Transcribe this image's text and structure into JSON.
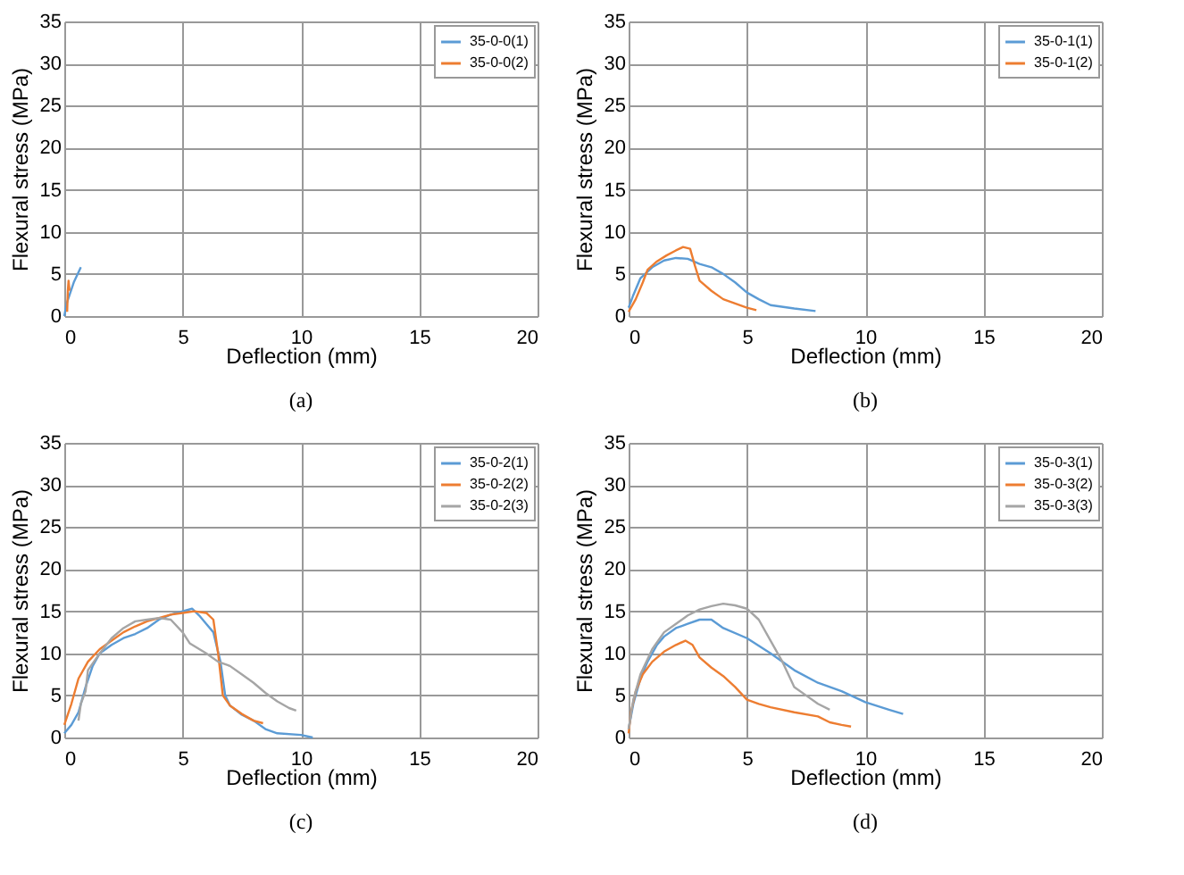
{
  "chart_data": [
    {
      "type": "line",
      "xlabel": "Deflection (mm)",
      "ylabel": "Flexural stress (MPa)",
      "xlim": [
        0,
        20
      ],
      "xticks": [
        0,
        5,
        10,
        15,
        20
      ],
      "ylim": [
        0,
        35
      ],
      "yticks": [
        0,
        5,
        10,
        15,
        20,
        25,
        30,
        35
      ],
      "grid": true,
      "legend": "top right",
      "annotations": [
        "(a)"
      ],
      "series": [
        {
          "name": "35-0-0(1)",
          "color": "#5b9bd5",
          "x": [
            0,
            0.1,
            0.4,
            0.7
          ],
          "values": [
            0,
            1.5,
            4,
            5.8
          ]
        },
        {
          "name": "35-0-0(2)",
          "color": "#ed7d31",
          "x": [
            0.12,
            0.15,
            0.18,
            0.22
          ],
          "values": [
            0.5,
            3,
            4.2,
            3
          ]
        }
      ]
    },
    {
      "type": "line",
      "xlabel": "Deflection (mm)",
      "ylabel": "Flexural stress (MPa)",
      "xlim": [
        0,
        20
      ],
      "xticks": [
        0,
        5,
        10,
        15,
        20
      ],
      "ylim": [
        0,
        35
      ],
      "yticks": [
        0,
        5,
        10,
        15,
        20,
        25,
        30,
        35
      ],
      "grid": true,
      "legend": "top right",
      "annotations": [
        "(b)"
      ],
      "series": [
        {
          "name": "35-0-1(1)",
          "color": "#5b9bd5",
          "x": [
            0,
            0.2,
            0.5,
            1,
            1.5,
            2,
            2.5,
            3,
            3.5,
            4,
            4.5,
            5,
            5.5,
            6,
            7,
            7.9
          ],
          "values": [
            1,
            2.5,
            4.5,
            5.8,
            6.6,
            6.9,
            6.8,
            6.2,
            5.8,
            5,
            4,
            2.8,
            2,
            1.3,
            0.9,
            0.6
          ]
        },
        {
          "name": "35-0-1(2)",
          "color": "#ed7d31",
          "x": [
            0,
            0.3,
            0.6,
            0.8,
            1.2,
            1.6,
            2,
            2.3,
            2.6,
            2.8,
            3,
            3.5,
            4,
            4.5,
            5,
            5.4
          ],
          "values": [
            0.5,
            2,
            4,
            5.5,
            6.5,
            7.2,
            7.8,
            8.2,
            8,
            6,
            4.2,
            3,
            2,
            1.5,
            1,
            0.7
          ]
        }
      ]
    },
    {
      "type": "line",
      "xlabel": "Deflection (mm)",
      "ylabel": "Flexural stress (MPa)",
      "xlim": [
        0,
        20
      ],
      "xticks": [
        0,
        5,
        10,
        15,
        20
      ],
      "ylim": [
        0,
        35
      ],
      "yticks": [
        0,
        5,
        10,
        15,
        20,
        25,
        30,
        35
      ],
      "grid": true,
      "legend": "top right",
      "annotations": [
        "(c)"
      ],
      "series": [
        {
          "name": "35-0-2(1)",
          "color": "#5b9bd5",
          "x": [
            0,
            0.3,
            0.6,
            0.9,
            1.2,
            1.5,
            2,
            2.5,
            3,
            3.5,
            4,
            4.5,
            5,
            5.4,
            5.7,
            6,
            6.3,
            6.6,
            6.8,
            7,
            7.5,
            8,
            8.5,
            9,
            10,
            10.5
          ],
          "values": [
            0.5,
            1.5,
            3,
            6,
            8.5,
            10,
            11,
            11.8,
            12.3,
            13,
            14,
            14.6,
            15,
            15.3,
            14.5,
            13.5,
            12.5,
            9,
            5,
            3.8,
            2.7,
            2,
            1,
            0.5,
            0.3,
            0
          ]
        },
        {
          "name": "35-0-2(2)",
          "color": "#ed7d31",
          "x": [
            0,
            0.3,
            0.6,
            1,
            1.5,
            2,
            2.5,
            3,
            3.5,
            4,
            4.5,
            5,
            5.5,
            6,
            6.3,
            6.5,
            6.7,
            7,
            7.5,
            8,
            8.4
          ],
          "values": [
            1.5,
            4,
            7,
            9,
            10.5,
            11.5,
            12.5,
            13.2,
            13.8,
            14.2,
            14.6,
            14.8,
            15,
            14.8,
            14,
            10,
            5,
            3.8,
            2.8,
            2,
            1.7
          ]
        },
        {
          "name": "35-0-2(3)",
          "color": "#a5a5a5",
          "x": [
            0.6,
            0.7,
            0.9,
            1,
            1.5,
            2,
            2.5,
            3,
            3.5,
            4,
            4.5,
            5,
            5.3,
            6,
            6.5,
            7,
            7.5,
            8,
            8.5,
            9,
            9.5,
            9.8
          ],
          "values": [
            2,
            4,
            5.5,
            8,
            10,
            11.8,
            13,
            13.8,
            14,
            14.2,
            14,
            12.5,
            11.2,
            10,
            9,
            8.5,
            7.5,
            6.5,
            5.3,
            4.3,
            3.5,
            3.2
          ]
        }
      ]
    },
    {
      "type": "line",
      "xlabel": "Deflection (mm)",
      "ylabel": "Flexural stress (MPa)",
      "xlim": [
        0,
        20
      ],
      "xticks": [
        0,
        5,
        10,
        15,
        20
      ],
      "ylim": [
        0,
        35
      ],
      "yticks": [
        0,
        5,
        10,
        15,
        20,
        25,
        30,
        35
      ],
      "grid": true,
      "legend": "top right",
      "annotations": [
        "(d)"
      ],
      "series": [
        {
          "name": "35-0-3(1)",
          "color": "#5b9bd5",
          "x": [
            0,
            0.2,
            0.5,
            0.8,
            1.2,
            1.5,
            2,
            2.5,
            3,
            3.5,
            4,
            5,
            6,
            7,
            8,
            9,
            10,
            11,
            11.6
          ],
          "values": [
            1,
            4,
            7,
            9,
            11,
            12,
            13,
            13.5,
            14,
            14,
            13,
            11.8,
            10,
            8,
            6.5,
            5.5,
            4.2,
            3.3,
            2.8
          ]
        },
        {
          "name": "35-0-3(2)",
          "color": "#ed7d31",
          "x": [
            0,
            0.1,
            0.3,
            0.6,
            1,
            1.5,
            2,
            2.4,
            2.7,
            3,
            3.5,
            4,
            4.5,
            5,
            5.5,
            6,
            7,
            8,
            8.5,
            9,
            9.4
          ],
          "values": [
            0.5,
            3,
            5.5,
            7.5,
            9,
            10.2,
            11,
            11.5,
            11,
            9.5,
            8.3,
            7.3,
            6,
            4.5,
            4,
            3.6,
            3,
            2.5,
            1.8,
            1.5,
            1.3
          ]
        },
        {
          "name": "35-0-3(3)",
          "color": "#a5a5a5",
          "x": [
            0,
            0.2,
            0.5,
            1,
            1.5,
            2,
            2.5,
            3,
            3.5,
            4,
            4.5,
            5,
            5.5,
            6,
            6.5,
            7,
            7.5,
            8,
            8.5
          ],
          "values": [
            1,
            4.5,
            7.5,
            10.5,
            12.5,
            13.5,
            14.5,
            15.2,
            15.6,
            15.9,
            15.7,
            15.3,
            14,
            11.5,
            9,
            6,
            5,
            4,
            3.3
          ]
        }
      ]
    }
  ]
}
